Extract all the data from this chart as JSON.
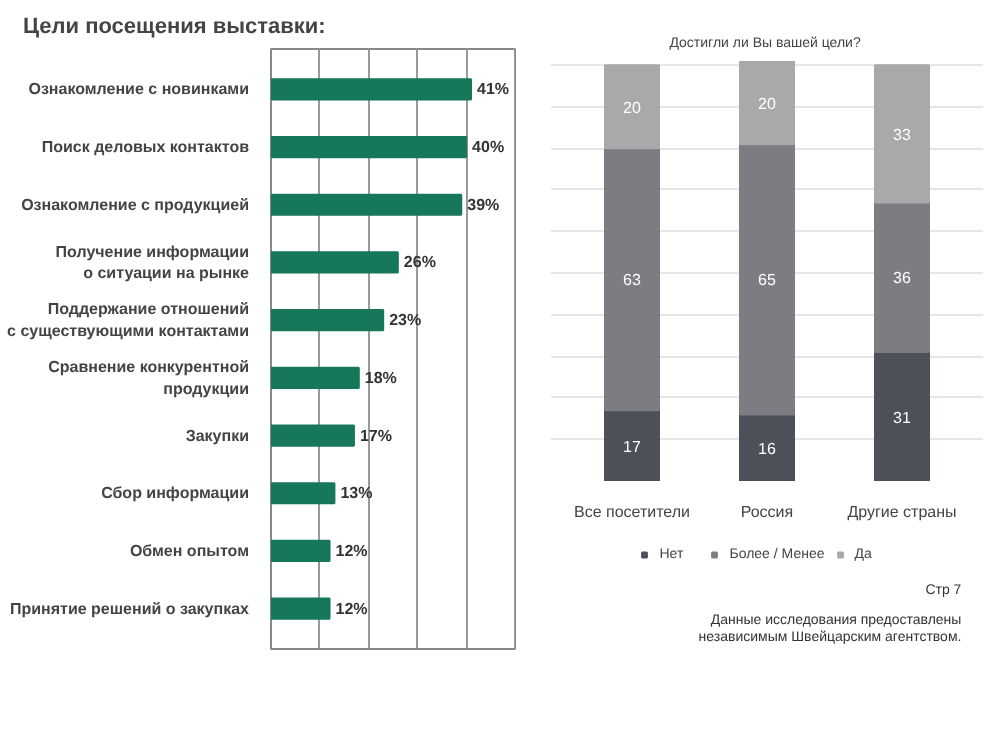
{
  "chart_data": [
    {
      "type": "bar",
      "orientation": "horizontal",
      "title": "Цели посещения выставки:",
      "categories": [
        "Ознакомление с новинками",
        "Поиск деловых контактов",
        "Ознакомление с продукцией",
        "Получение информации\nо ситуации на рынке",
        "Поддержание отношений\nс существующими контактами",
        "Сравнение конкурентной\nпродукции",
        "Закупки",
        "Сбор информации",
        "Обмен опытом",
        "Принятие решений о закупках"
      ],
      "values": [
        41,
        40,
        39,
        26,
        23,
        18,
        17,
        13,
        12,
        12
      ],
      "color": "#17775a",
      "value_labels": [
        "41%",
        "40%",
        "39%",
        "26%",
        "23%",
        "18%",
        "17%",
        "13%",
        "12%",
        "12%"
      ],
      "grid": "x",
      "tick_labels": "y"
    },
    {
      "type": "bar",
      "stacked": true,
      "title": "Достигли  ли Вы вашей цели?",
      "categories": [
        "Все посетители",
        "Россия",
        "Другие страны"
      ],
      "series": [
        {
          "name": "Нет",
          "color": "#4b5059",
          "values": [
            17,
            16,
            31
          ]
        },
        {
          "name": "Более / Менее",
          "color": "#7b7d82",
          "values": [
            63,
            65,
            36
          ]
        },
        {
          "name": "Да",
          "color": "#a7a9ab",
          "values": [
            20,
            20,
            33
          ]
        }
      ],
      "data_labels": true,
      "grid": "y",
      "tick_labels": "x",
      "legend": "bottom",
      "annotations": [
        "Стр 7",
        "Данные исследования предоставлены\nнезависимым Швейцарским агентством."
      ]
    }
  ]
}
